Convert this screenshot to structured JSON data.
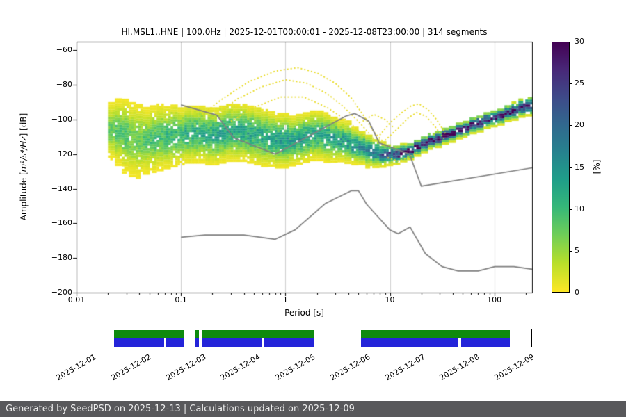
{
  "header": {
    "title": "HI.MSL1..HNE | 100.0Hz | 2025-12-01T00:00:01 - 2025-12-08T23:00:00 | 314 segments"
  },
  "footer": {
    "text": "Generated by SeedPSD on 2025-12-13 | Calculations updated on 2025-12-09",
    "background": "#58585b"
  },
  "chart_data": {
    "type": "heatmap",
    "subtype": "probabilistic-power-spectral-density",
    "title": "HI.MSL1..HNE | 100.0Hz | 2025-12-01T00:00:01 - 2025-12-08T23:00:00 | 314 segments",
    "xlabel": "Period [s]",
    "ylabel_parts": {
      "prefix": "Amplitude [",
      "math": "m²/s⁴/Hz",
      "suffix": "] [dB]"
    },
    "xscale": "log",
    "xlim": [
      0.01,
      230
    ],
    "ylim": [
      -200,
      -55
    ],
    "xticks": [
      {
        "value": 0.01,
        "label": "0.01"
      },
      {
        "value": 0.1,
        "label": "0.1"
      },
      {
        "value": 1,
        "label": "1"
      },
      {
        "value": 10,
        "label": "10"
      },
      {
        "value": 100,
        "label": "100"
      }
    ],
    "yticks": [
      {
        "value": -60,
        "label": "−60"
      },
      {
        "value": -80,
        "label": "−80"
      },
      {
        "value": -100,
        "label": "−100"
      },
      {
        "value": -120,
        "label": "−120"
      },
      {
        "value": -140,
        "label": "−140"
      },
      {
        "value": -160,
        "label": "−160"
      },
      {
        "value": -180,
        "label": "−180"
      },
      {
        "value": -200,
        "label": "−200"
      }
    ],
    "grid": {
      "vertical_decades": [
        0.1,
        1,
        10,
        100
      ],
      "color": "#cfcfcf"
    },
    "colorbar": {
      "label": "[%]",
      "min": 0,
      "max": 30,
      "ticks": [
        0,
        5,
        10,
        15,
        20,
        25,
        30
      ],
      "colormap": "viridis reversed (0%=yellow #fde725, 30%=dark #440154)"
    },
    "ppsd": {
      "periods": [
        0.02,
        0.0233,
        0.0272,
        0.0317,
        0.0369,
        0.043,
        0.0502,
        0.0585,
        0.0682,
        0.0795,
        0.0927,
        0.108,
        0.126,
        0.147,
        0.171,
        0.199,
        0.232,
        0.271,
        0.316,
        0.368,
        0.429,
        0.5,
        0.583,
        0.68,
        0.793,
        0.924,
        1.08,
        1.26,
        1.46,
        1.71,
        1.99,
        2.32,
        2.7,
        3.15,
        3.67,
        4.28,
        4.99,
        5.82,
        6.78,
        7.91,
        9.22,
        10.7,
        12.5,
        14.6,
        17.0,
        19.8,
        23.1,
        27.0,
        31.4,
        36.6,
        42.7,
        49.8,
        58.0,
        67.7,
        78.9,
        92.0,
        107,
        125,
        146,
        170,
        198
      ],
      "center_db": [
        -106,
        -107,
        -109,
        -111,
        -112,
        -112,
        -111,
        -110,
        -110,
        -109,
        -109,
        -108,
        -108,
        -108,
        -109,
        -109,
        -108,
        -107,
        -107,
        -107,
        -108,
        -109,
        -110,
        -111,
        -112,
        -112,
        -112,
        -111,
        -110,
        -109,
        -109,
        -110,
        -111,
        -112,
        -113,
        -115,
        -116,
        -118,
        -119,
        -120,
        -120,
        -120,
        -119,
        -118,
        -116,
        -114,
        -112,
        -111,
        -109,
        -108,
        -106,
        -105,
        -103,
        -102,
        -100,
        -99,
        -98,
        -96,
        -95,
        -93,
        -92
      ],
      "sigma_db": [
        7,
        8,
        9,
        9,
        9,
        8,
        8,
        8,
        7.5,
        7.5,
        7,
        7,
        7,
        7,
        7,
        7,
        7,
        7,
        7,
        7,
        7,
        7,
        7,
        6.5,
        6.5,
        6.5,
        6,
        6,
        6,
        6,
        6,
        6,
        5.5,
        5,
        5,
        4.5,
        4,
        4,
        3.5,
        3,
        2.6,
        2.3,
        2.1,
        2,
        2,
        2,
        2,
        2,
        2,
        2,
        2,
        2,
        2,
        2,
        2,
        2,
        2,
        2,
        2.1,
        2.2,
        2.3
      ],
      "peak_percent": [
        7,
        8,
        8,
        7,
        7,
        8,
        9,
        9,
        10,
        10,
        10,
        11,
        11,
        11,
        11,
        12,
        12,
        12,
        12,
        12,
        12,
        12,
        12,
        13,
        13,
        13,
        13,
        13,
        13,
        12,
        12,
        12,
        13,
        13,
        14,
        14,
        15,
        16,
        18,
        20,
        23,
        26,
        29,
        30,
        30,
        29,
        29,
        29,
        29,
        28,
        28,
        28,
        28,
        28,
        28,
        28,
        28,
        28,
        28,
        28,
        28
      ]
    },
    "outlier_traces": [
      [
        [
          0.16,
          -97
        ],
        [
          0.25,
          -88
        ],
        [
          0.45,
          -78
        ],
        [
          0.8,
          -72
        ],
        [
          1.3,
          -70
        ],
        [
          2.0,
          -73
        ],
        [
          3.0,
          -79
        ],
        [
          4.2,
          -87
        ],
        [
          5.5,
          -97
        ],
        [
          7.0,
          -107
        ],
        [
          9.0,
          -114
        ]
      ],
      [
        [
          0.2,
          -99
        ],
        [
          0.35,
          -88
        ],
        [
          0.6,
          -81
        ],
        [
          1.0,
          -77
        ],
        [
          1.6,
          -79
        ],
        [
          2.5,
          -85
        ],
        [
          3.5,
          -92
        ],
        [
          5.0,
          -101
        ],
        [
          7.0,
          -111
        ]
      ],
      [
        [
          0.3,
          -101
        ],
        [
          0.5,
          -93
        ],
        [
          0.9,
          -87
        ],
        [
          1.5,
          -87
        ],
        [
          2.5,
          -93
        ],
        [
          4.0,
          -101
        ],
        [
          6.0,
          -111
        ]
      ],
      [
        [
          8.0,
          -109
        ],
        [
          10,
          -102
        ],
        [
          13,
          -96
        ],
        [
          16,
          -92
        ],
        [
          19,
          -91
        ],
        [
          23,
          -94
        ],
        [
          28,
          -100
        ],
        [
          34,
          -108
        ]
      ],
      [
        [
          9.0,
          -112
        ],
        [
          12,
          -105
        ],
        [
          15,
          -99
        ],
        [
          18,
          -96
        ],
        [
          22,
          -98
        ],
        [
          27,
          -104
        ],
        [
          33,
          -111
        ]
      ],
      [
        [
          9.5,
          -122
        ],
        [
          12,
          -124
        ],
        [
          15,
          -122
        ],
        [
          19,
          -118
        ]
      ],
      [
        [
          0.024,
          -120
        ],
        [
          0.03,
          -127
        ],
        [
          0.04,
          -126
        ],
        [
          0.052,
          -121
        ]
      ],
      [
        [
          5.5,
          -101
        ],
        [
          7.0,
          -97
        ],
        [
          9.0,
          -100
        ],
        [
          11,
          -105
        ]
      ]
    ],
    "noise_models": {
      "color": "#7f7f7f",
      "nhnm": [
        [
          0.1,
          -91.5
        ],
        [
          0.22,
          -97.4
        ],
        [
          0.32,
          -110.5
        ],
        [
          0.8,
          -120.0
        ],
        [
          3.8,
          -98.0
        ],
        [
          4.6,
          -96.5
        ],
        [
          6.3,
          -101.0
        ],
        [
          7.9,
          -113.5
        ],
        [
          15.4,
          -120.0
        ],
        [
          20.0,
          -138.5
        ],
        [
          230,
          -127.9
        ]
      ],
      "nlnm": [
        [
          0.1,
          -168.0
        ],
        [
          0.17,
          -166.7
        ],
        [
          0.4,
          -166.7
        ],
        [
          0.8,
          -169.2
        ],
        [
          1.24,
          -163.7
        ],
        [
          2.4,
          -148.6
        ],
        [
          4.3,
          -141.1
        ],
        [
          5.0,
          -141.1
        ],
        [
          6.0,
          -149.0
        ],
        [
          10.0,
          -163.8
        ],
        [
          12.0,
          -166.0
        ],
        [
          15.6,
          -162.1
        ],
        [
          21.9,
          -177.5
        ],
        [
          31.6,
          -185.0
        ],
        [
          45.0,
          -187.5
        ],
        [
          70.0,
          -187.5
        ],
        [
          101.0,
          -185.0
        ],
        [
          154.0,
          -185.0
        ],
        [
          230,
          -186.5
        ]
      ]
    }
  },
  "availability": {
    "green_color": "#0e8a0e",
    "blue_color": "#2424d9",
    "green_segments": [
      [
        0.047,
        0.206
      ],
      [
        0.234,
        0.241
      ],
      [
        0.249,
        0.505
      ],
      [
        0.611,
        0.951
      ]
    ],
    "blue_segments": [
      [
        0.047,
        0.162
      ],
      [
        0.167,
        0.206
      ],
      [
        0.234,
        0.241
      ],
      [
        0.249,
        0.384
      ],
      [
        0.39,
        0.505
      ],
      [
        0.611,
        0.833
      ],
      [
        0.839,
        0.951
      ]
    ],
    "date_ticks": [
      "2025-12-01",
      "2025-12-02",
      "2025-12-03",
      "2025-12-04",
      "2025-12-05",
      "2025-12-06",
      "2025-12-07",
      "2025-12-08",
      "2025-12-09"
    ]
  }
}
